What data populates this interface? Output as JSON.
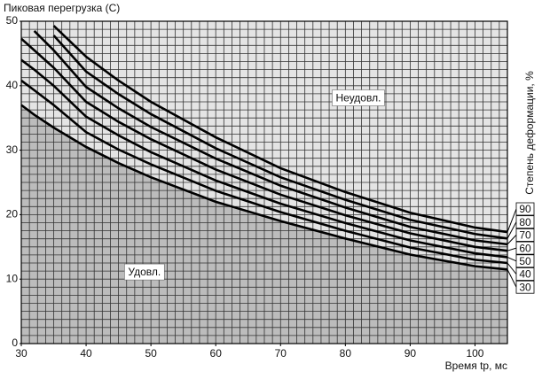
{
  "chart_data": {
    "type": "line",
    "title": "Пиковая перегрузка (С)",
    "xlabel": "Время tp, мс",
    "ylabel": "Степень деформации, %",
    "x": [
      30,
      32,
      35,
      40,
      45,
      50,
      60,
      70,
      80,
      90,
      100,
      105
    ],
    "series": [
      {
        "name": "30",
        "color": "#000000",
        "values": [
          37,
          35.5,
          33.5,
          30.5,
          28,
          25.8,
          22,
          19,
          16.3,
          13.8,
          12,
          11.5
        ]
      },
      {
        "name": "40",
        "color": "#000000",
        "values": [
          40.8,
          39.3,
          37,
          32.8,
          30.1,
          27.8,
          23.7,
          20.4,
          17.5,
          14.9,
          13,
          12.5
        ]
      },
      {
        "name": "50",
        "color": "#000000",
        "values": [
          44,
          42.5,
          40,
          35.2,
          32.3,
          29.7,
          25.3,
          21.7,
          18.7,
          16,
          14,
          13.4
        ]
      },
      {
        "name": "60",
        "color": "#000000",
        "values": [
          47.3,
          45.5,
          42.8,
          37.5,
          34.4,
          31.7,
          27,
          23.1,
          19.9,
          17.1,
          15,
          14.4
        ]
      },
      {
        "name": "70",
        "color": "#000000",
        "values": [
          null,
          48.5,
          45.5,
          39.8,
          36.5,
          33.6,
          28.7,
          24.5,
          21.1,
          18.1,
          16,
          15.4
        ]
      },
      {
        "name": "80",
        "color": "#000000",
        "values": [
          null,
          null,
          47.8,
          42.2,
          38.7,
          35.6,
          30.3,
          25.8,
          22.3,
          19.2,
          17,
          16.3
        ]
      },
      {
        "name": "90",
        "color": "#000000",
        "values": [
          null,
          null,
          49.3,
          44.5,
          40.8,
          37.5,
          32,
          27.2,
          23.5,
          20.3,
          18,
          17.3
        ]
      }
    ],
    "xlim": [
      30,
      105
    ],
    "ylim": [
      0,
      50
    ],
    "xticks": [
      30,
      40,
      50,
      60,
      70,
      80,
      90,
      100
    ],
    "yticks": [
      0,
      10,
      20,
      30,
      40,
      50
    ],
    "xminor": [
      30,
      31.25,
      32.5,
      33.75,
      35,
      36.25,
      37.5,
      38.75,
      40,
      41.25,
      42.5,
      43.75,
      45,
      46.25,
      47.5,
      48.75,
      50,
      51.25,
      52.5,
      53.75,
      55,
      56.25,
      57.5,
      58.75,
      60,
      61.25,
      62.5,
      63.75,
      65,
      66.25,
      67.5,
      68.75,
      70,
      71.25,
      72.5,
      73.75,
      75,
      76.25,
      77.5,
      78.75,
      80,
      81.25,
      82.5,
      83.75,
      85,
      86.25,
      87.5,
      88.75,
      90,
      91.25,
      92.5,
      93.75,
      95,
      96.25,
      97.5,
      98.75,
      100,
      101.25,
      102.5,
      103.75,
      105
    ],
    "yminor": [
      0,
      1.25,
      2.5,
      3.75,
      5,
      6.25,
      7.5,
      8.75,
      10,
      11.25,
      12.5,
      13.75,
      15,
      16.25,
      17.5,
      18.75,
      20,
      21.25,
      22.5,
      23.75,
      25,
      26.25,
      27.5,
      28.75,
      30,
      31.25,
      32.5,
      33.75,
      35,
      36.25,
      37.5,
      38.75,
      40,
      41.25,
      42.5,
      43.75,
      45,
      46.25,
      47.5,
      48.75,
      50
    ],
    "grid": true,
    "annotations": [
      {
        "text": "Неудовл.",
        "x": 82,
        "y": 38
      },
      {
        "text": "Удовл.",
        "x": 49,
        "y": 11
      }
    ]
  }
}
